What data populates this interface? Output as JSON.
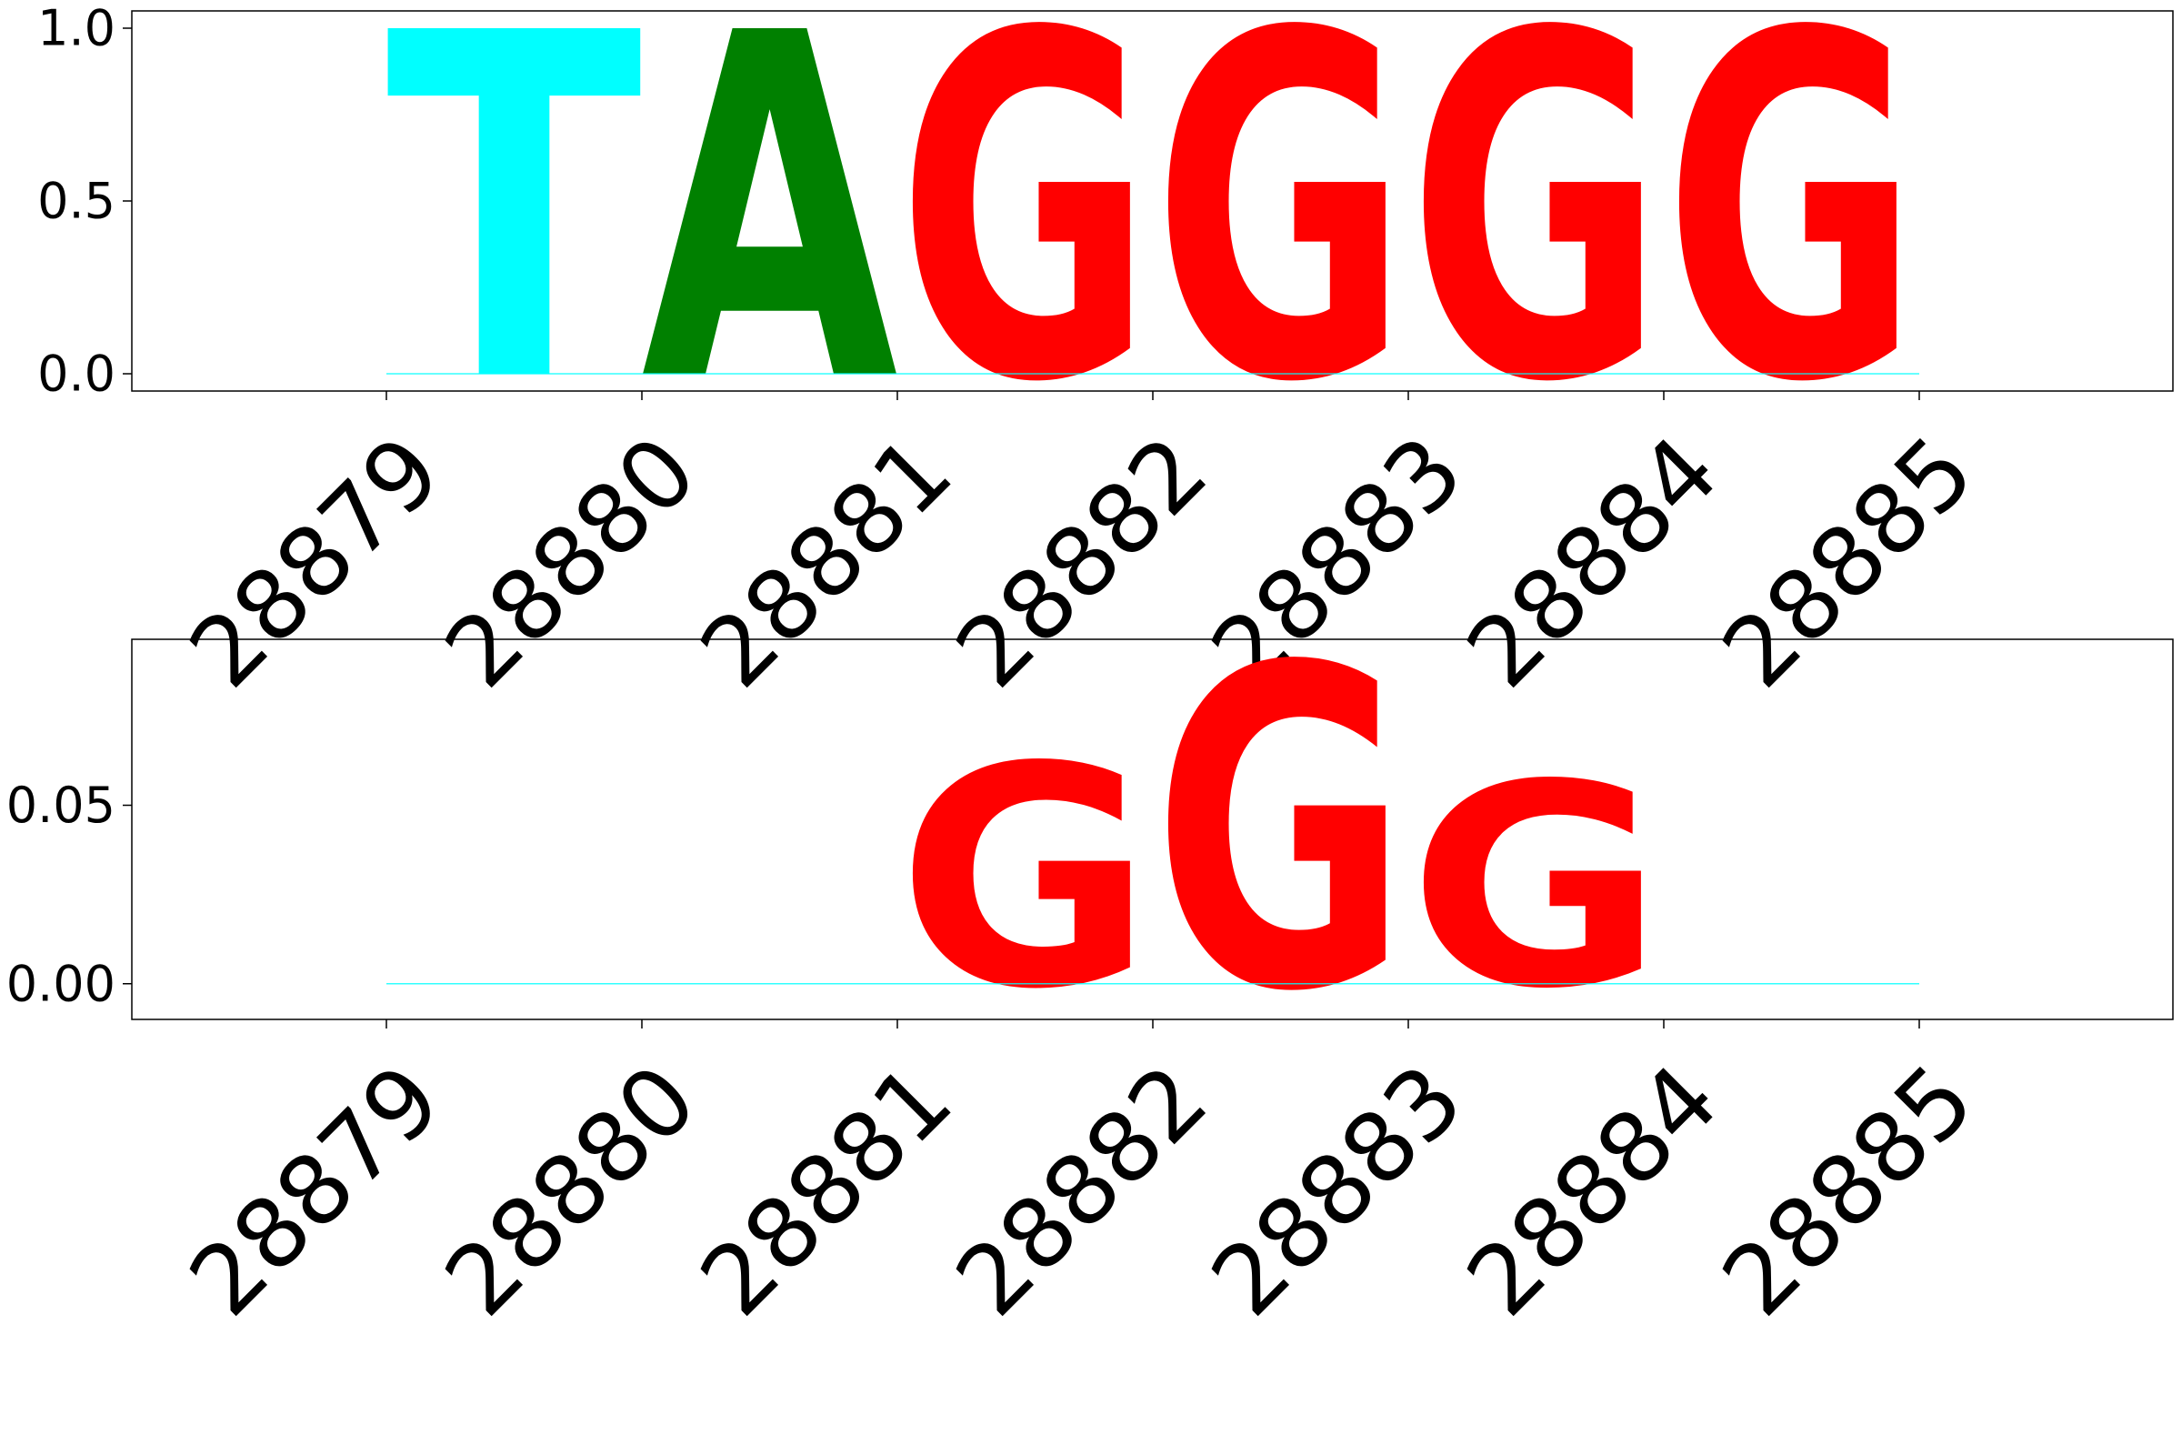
{
  "chart_data": [
    {
      "type": "sequence-logo",
      "x": [
        28879,
        28880,
        28881,
        28882,
        28883,
        28884,
        28885
      ],
      "xticks": [
        "28879",
        "28880",
        "28881",
        "28882",
        "28883",
        "28884",
        "28885"
      ],
      "ylim": [
        -0.05,
        1.05
      ],
      "yticks": [
        "0.0",
        "0.5",
        "1.0"
      ],
      "ytick_values": [
        0.0,
        0.5,
        1.0
      ],
      "colors": {
        "T": "#00ffff",
        "A": "#008000",
        "G": "#ff0000",
        "C": "#0000ff"
      },
      "letters": [
        {
          "x": 28879,
          "letter": "T",
          "value": 1.0
        },
        {
          "x": 28880,
          "letter": "A",
          "value": 1.0
        },
        {
          "x": 28881,
          "letter": "G",
          "value": 1.0
        },
        {
          "x": 28882,
          "letter": "G",
          "value": 1.0
        },
        {
          "x": 28883,
          "letter": "G",
          "value": 1.0
        },
        {
          "x": 28884,
          "letter": "G",
          "value": 1.0
        }
      ]
    },
    {
      "type": "sequence-logo",
      "x": [
        28879,
        28880,
        28881,
        28882,
        28883,
        28884,
        28885
      ],
      "xticks": [
        "28879",
        "28880",
        "28881",
        "28882",
        "28883",
        "28884",
        "28885"
      ],
      "ylim": [
        -0.01,
        0.0965
      ],
      "yticks": [
        "0.00",
        "0.05"
      ],
      "ytick_values": [
        0.0,
        0.05
      ],
      "colors": {
        "T": "#00ffff",
        "A": "#008000",
        "G": "#ff0000",
        "C": "#0000ff"
      },
      "letters": [
        {
          "x": 28881,
          "letter": "G",
          "value": 0.062
        },
        {
          "x": 28882,
          "letter": "G",
          "value": 0.09
        },
        {
          "x": 28883,
          "letter": "G",
          "value": 0.057
        }
      ]
    }
  ]
}
